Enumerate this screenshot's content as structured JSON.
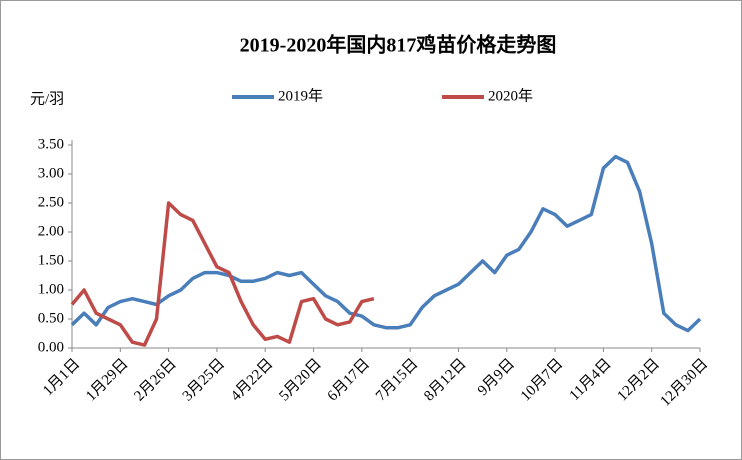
{
  "chart_data": {
    "type": "line",
    "title": "2019-2020年国内817鸡苗价格走势图",
    "y_label": "元/羽",
    "categories": [
      "1月1日",
      null,
      null,
      null,
      "1月29日",
      null,
      null,
      null,
      "2月26日",
      null,
      null,
      null,
      "3月25日",
      null,
      null,
      null,
      "4月22日",
      null,
      null,
      null,
      "5月20日",
      null,
      null,
      null,
      "6月17日",
      null,
      null,
      null,
      "7月15日",
      null,
      null,
      null,
      "8月12日",
      null,
      null,
      null,
      "9月9日",
      null,
      null,
      null,
      "10月7日",
      null,
      null,
      null,
      "11月4日",
      null,
      null,
      null,
      "12月2日",
      null,
      null,
      null,
      "12月30日"
    ],
    "series": [
      {
        "name": "2019年",
        "color": "#4a7ebb",
        "values": [
          0.4,
          0.6,
          0.4,
          0.7,
          0.8,
          0.85,
          0.8,
          0.75,
          0.9,
          1.0,
          1.2,
          1.3,
          1.3,
          1.25,
          1.15,
          1.15,
          1.2,
          1.3,
          1.25,
          1.3,
          1.1,
          0.9,
          0.8,
          0.6,
          0.55,
          0.4,
          0.35,
          0.35,
          0.4,
          0.7,
          0.9,
          1.0,
          1.1,
          1.3,
          1.5,
          1.3,
          1.6,
          1.7,
          2.0,
          2.4,
          2.3,
          2.1,
          2.2,
          2.3,
          3.1,
          3.3,
          3.2,
          2.7,
          1.8,
          0.6,
          0.4,
          0.3,
          0.5
        ]
      },
      {
        "name": "2020年",
        "color": "#be4b48",
        "values": [
          0.75,
          1.0,
          0.6,
          0.5,
          0.4,
          0.1,
          0.05,
          0.5,
          2.5,
          2.3,
          2.2,
          1.8,
          1.4,
          1.3,
          0.8,
          0.4,
          0.15,
          0.2,
          0.1,
          0.8,
          0.85,
          0.5,
          0.4,
          0.45,
          0.8,
          0.85,
          null,
          null,
          null,
          null,
          null,
          null,
          null,
          null,
          null,
          null,
          null,
          null,
          null,
          null,
          null,
          null,
          null,
          null,
          null,
          null,
          null,
          null,
          null,
          null,
          null,
          null,
          null
        ]
      }
    ],
    "ylim": [
      0,
      3.5
    ],
    "yticks": [
      {
        "value": 0,
        "label": "0.00"
      },
      {
        "value": 0.5,
        "label": "0.50"
      },
      {
        "value": 1,
        "label": "1.00"
      },
      {
        "value": 1.5,
        "label": "1.50"
      },
      {
        "value": 2,
        "label": "2.00"
      },
      {
        "value": 2.5,
        "label": "2.50"
      },
      {
        "value": 3,
        "label": "3.00"
      },
      {
        "value": 3.5,
        "label": "3.50"
      }
    ],
    "legend": "top",
    "grid": false
  }
}
